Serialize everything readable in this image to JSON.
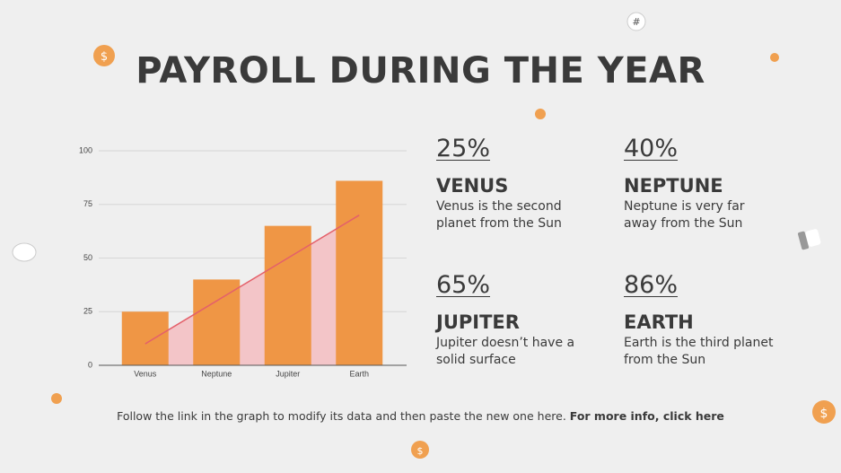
{
  "title": "PAYROLL DURING THE YEAR",
  "chart_data": {
    "type": "bar",
    "categories": [
      "Venus",
      "Neptune",
      "Jupiter",
      "Earth"
    ],
    "series": [
      {
        "type": "bar",
        "color": "#ef9645",
        "values": [
          25,
          40,
          65,
          86
        ]
      },
      {
        "type": "area",
        "color": "#e4606a",
        "fill": "#f3c5c8",
        "values": [
          10,
          30,
          50,
          70
        ]
      }
    ],
    "ylim": [
      0,
      100
    ],
    "yticks": [
      0,
      25,
      50,
      75,
      100
    ],
    "grid": true
  },
  "stats": [
    {
      "value": "25%",
      "title": "VENUS",
      "text": "Venus is the second planet from the Sun"
    },
    {
      "value": "40%",
      "title": "NEPTUNE",
      "text": "Neptune is very far away from the Sun"
    },
    {
      "value": "65%",
      "title": "JUPITER",
      "text": "Jupiter doesn’t have a solid surface"
    },
    {
      "value": "86%",
      "title": "EARTH",
      "text": "Earth is the third planet from the Sun"
    }
  ],
  "footer": {
    "text": "Follow the link in the graph to modify its data and then paste the new one here.",
    "link": "For more info, click here"
  }
}
